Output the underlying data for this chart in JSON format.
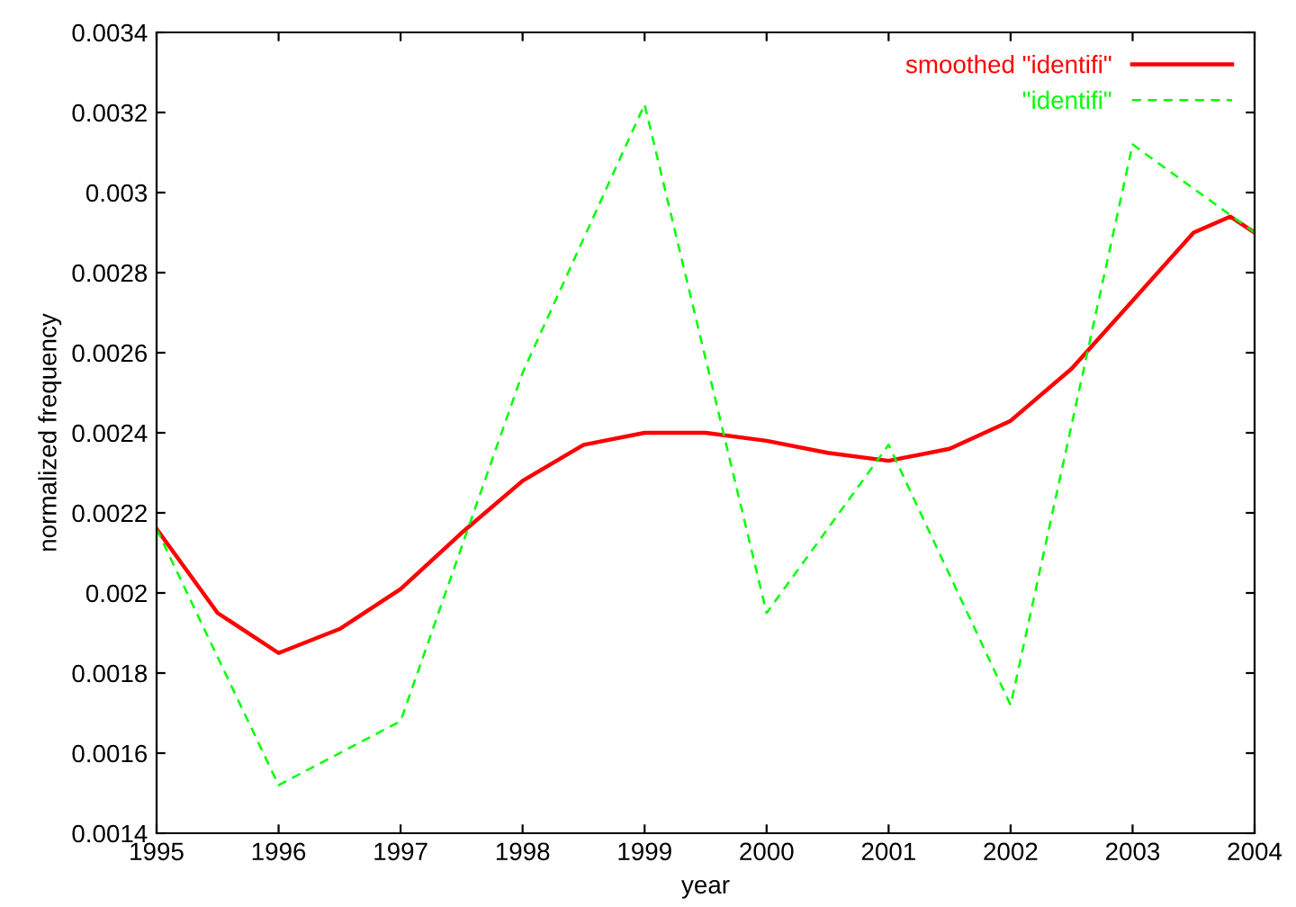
{
  "chart_data": {
    "type": "line",
    "xlabel": "year",
    "ylabel": "normalized frequency",
    "xlim": [
      1995,
      2004
    ],
    "xticks": [
      1995,
      1996,
      1997,
      1998,
      1999,
      2000,
      2001,
      2002,
      2003,
      2004
    ],
    "ylim": [
      0.0014,
      0.0034
    ],
    "yticks": [
      0.0014,
      0.0016,
      0.0018,
      0.002,
      0.0022,
      0.0024,
      0.0026,
      0.0028,
      0.003,
      0.0032,
      0.0034
    ],
    "grid": false,
    "legend": "top right",
    "series": [
      {
        "name": "smoothed \"identifi\"",
        "color": "#ff0000",
        "line_style": "solid",
        "x": [
          1995,
          1995.5,
          1996,
          1996.5,
          1997,
          1997.5,
          1998,
          1998.5,
          1999,
          1999.5,
          2000,
          2000.5,
          2001,
          2001.5,
          2002,
          2002.5,
          2003,
          2003.5,
          2003.8,
          2004
        ],
        "values": [
          0.00216,
          0.00195,
          0.00185,
          0.00191,
          0.00201,
          0.00215,
          0.00228,
          0.00237,
          0.0024,
          0.0024,
          0.00238,
          0.00235,
          0.00233,
          0.00236,
          0.00243,
          0.00256,
          0.00273,
          0.0029,
          0.00294,
          0.0029
        ]
      },
      {
        "name": "\"identifi\"",
        "color": "#00ff00",
        "line_style": "dashed",
        "x": [
          1995,
          1996,
          1997,
          1998,
          1999,
          2000,
          2001,
          2002,
          2003,
          2004
        ],
        "values": [
          0.00216,
          0.00152,
          0.00168,
          0.00255,
          0.00322,
          0.00195,
          0.00237,
          0.00172,
          0.00312,
          0.0029
        ]
      }
    ]
  }
}
